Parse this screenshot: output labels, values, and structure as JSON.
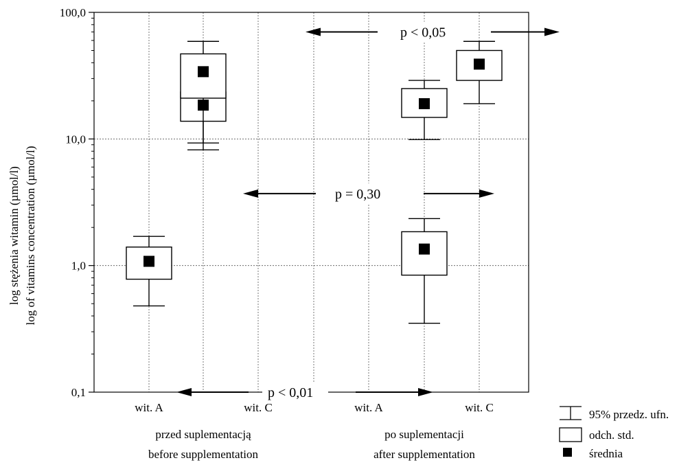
{
  "chart_data": {
    "type": "box",
    "y_scale": "log10",
    "ylim": [
      0.1,
      100
    ],
    "ylabel": [
      "log stężenia witamin (µmol/l)",
      "log of vitamins concentration (µmol/l)"
    ],
    "y_ticks": [
      {
        "value": 0.1,
        "label": "0,1"
      },
      {
        "value": 1,
        "label": "1,0"
      },
      {
        "value": 10,
        "label": "10,0"
      },
      {
        "value": 100,
        "label": "100,0"
      }
    ],
    "categories": [
      "wit. A",
      "wit. C",
      "wit. A",
      "wit. C"
    ],
    "groups": [
      {
        "label_pl": "przed suplementacją",
        "label_en": "before supplementation",
        "categories": [
          0,
          1
        ]
      },
      {
        "label_pl": "po suplementacji",
        "label_en": "after supplementation",
        "categories": [
          2,
          3
        ]
      }
    ],
    "boxes": [
      {
        "category": "wit. A",
        "group": "przed suplementacją",
        "mean": 1.08,
        "sd_low": 0.78,
        "sd_high": 1.4,
        "ci_low": 0.48,
        "ci_high": 1.7
      },
      {
        "category": "wit. C",
        "group": "przed suplementacją",
        "mean": 18.5,
        "sd_low": 13.8,
        "sd_high": 23.5,
        "ci_low": 9.3,
        "ci_high": 27.5
      },
      {
        "category": "wit. A",
        "group": "po suplementacji",
        "mean": 1.35,
        "sd_low": 0.84,
        "sd_high": 1.85,
        "ci_low": 0.35,
        "ci_high": 2.35
      },
      {
        "category": "wit. C",
        "group": "po suplementacji",
        "mean": 39,
        "sd_low": 29,
        "sd_high": 50,
        "ci_low": 19,
        "ci_high": 59
      }
    ],
    "extra_boxes": [
      {
        "category": "wit. C",
        "group": "przed suplementacją",
        "mean": 19,
        "sd_low": 14.8,
        "sd_high": 25,
        "ci_low": 9.9,
        "ci_high": 29
      },
      {
        "category": "wit. A",
        "group": "po suplementacji",
        "mean": 34,
        "sd_low": 21,
        "sd_high": 47,
        "ci_low": 8.2,
        "ci_high": 59
      }
    ],
    "annotations": [
      {
        "text": "p < 0,05",
        "y": 70,
        "from": "przed suplementacją wit. C",
        "to": "po suplementacji wit. C"
      },
      {
        "text": "p = 0,30",
        "y": 3.7,
        "from": "przed suplementacją wit. C",
        "to": "po suplementacji wit. C"
      },
      {
        "text": "p < 0,01",
        "y": 0.1,
        "from": "przed suplementacją wit. A",
        "to": "po suplementacji wit. A"
      }
    ],
    "legend": {
      "position": "right",
      "items": [
        {
          "key": "ci",
          "label": "95% przedz. ufn."
        },
        {
          "key": "sd",
          "label": "odch. std."
        },
        {
          "key": "mean",
          "label": "średnia"
        }
      ]
    },
    "grid": true
  }
}
